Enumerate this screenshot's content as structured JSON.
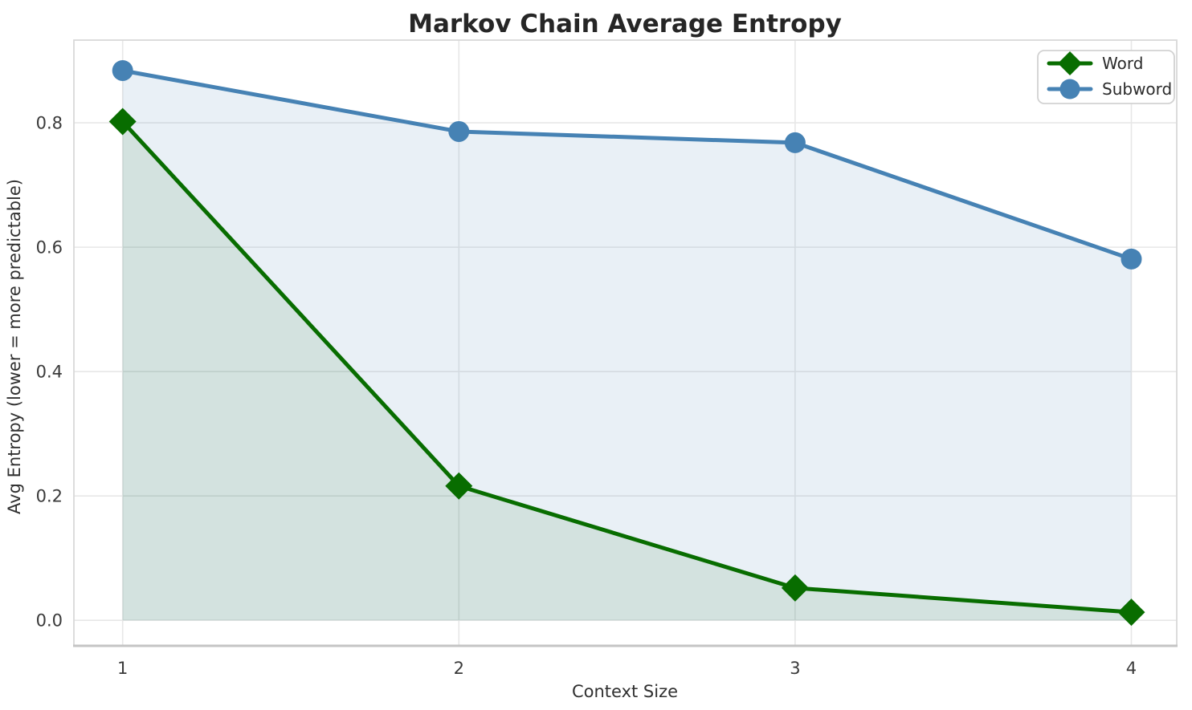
{
  "figure": {
    "background": "#ffffff",
    "title_color": "#262626",
    "tick_color": "#3a3a3a",
    "grid_color": "#e7e7e7",
    "spine_color": "#d9d9d9",
    "bottom_spine_color": "#c4c4c4",
    "legend": {
      "border_color": "#d2d2d2",
      "background": "#ffffff"
    }
  },
  "chart_data": {
    "type": "line",
    "title": "Markov Chain Average Entropy",
    "xlabel": "Context Size",
    "ylabel": "Avg Entropy (lower = more predictable)",
    "x": [
      1,
      2,
      3,
      4
    ],
    "series": [
      {
        "name": "Word",
        "values": [
          0.802,
          0.216,
          0.052,
          0.013
        ],
        "color": "#086d00",
        "marker": "diamond",
        "fill_alpha": 0.1
      },
      {
        "name": "Subword",
        "values": [
          0.884,
          0.786,
          0.768,
          0.581
        ],
        "color": "#4682b4",
        "marker": "circle",
        "fill_alpha": 0.12
      }
    ],
    "xticks": [
      "1",
      "2",
      "3",
      "4"
    ],
    "yticks": [
      "0.0",
      "0.2",
      "0.4",
      "0.6",
      "0.8"
    ],
    "xlim": [
      0.855,
      4.135
    ],
    "ylim": [
      -0.041,
      0.933
    ],
    "grid": true,
    "area_fill_baseline": 0,
    "legend_position": "upper right"
  }
}
